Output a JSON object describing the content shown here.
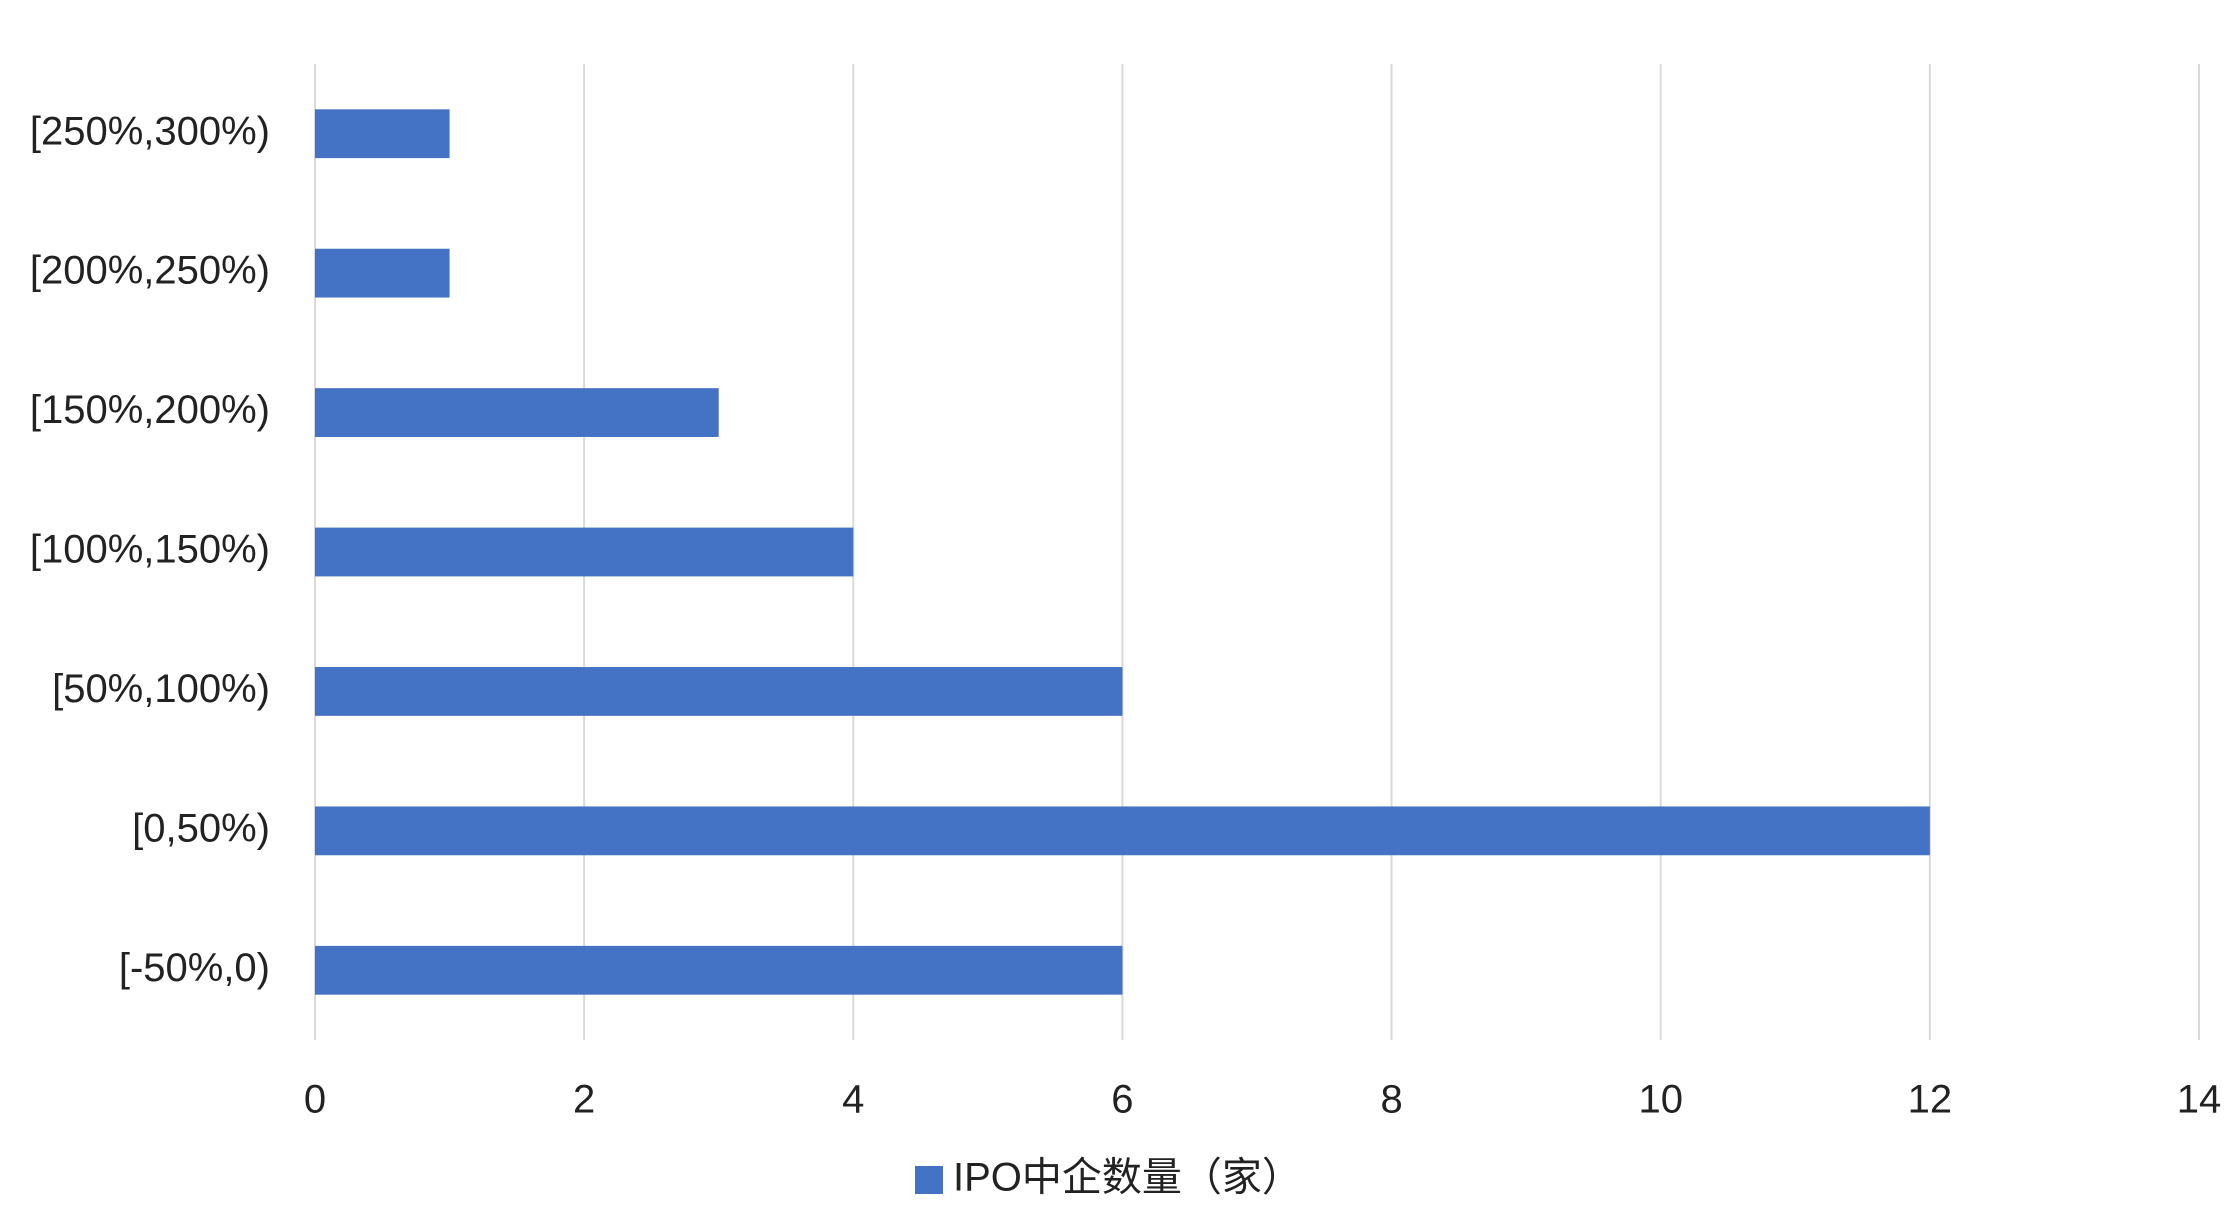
{
  "chart_data": {
    "type": "barh",
    "categories": [
      "[-50%,0)",
      "[0,50%)",
      "[50%,100%)",
      "[100%,150%)",
      "[150%,200%)",
      "[200%,250%)",
      "[250%,300%)"
    ],
    "series": [
      {
        "name": "IPO中企数量（家）",
        "color": "#4472c4",
        "values": [
          6,
          12,
          6,
          4,
          3,
          1,
          1
        ]
      }
    ],
    "xlim": [
      0,
      14
    ],
    "xticks": [
      0,
      2,
      4,
      6,
      8,
      10,
      12,
      14
    ],
    "grid": true,
    "legend": "bottom"
  }
}
